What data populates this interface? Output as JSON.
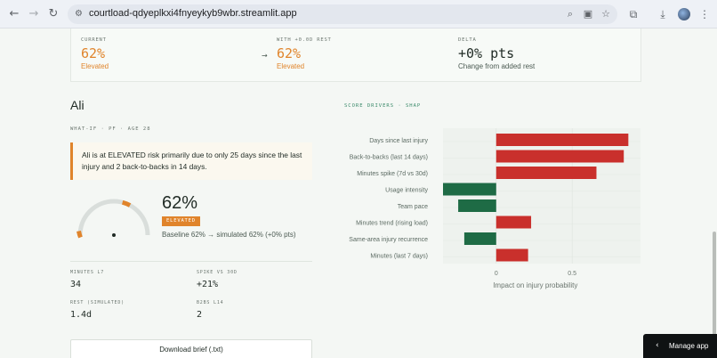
{
  "browser": {
    "url": "courtload-qdyeplkxi4fnyeykyb9wbr.streamlit.app",
    "icons": {
      "back": "back-arrow-icon",
      "forward": "forward-arrow-icon",
      "reload": "reload-icon",
      "site_info": "tune-icon",
      "zoom": "magnifier-icon",
      "cast": "install-app-icon",
      "bookmark": "star-icon",
      "extensions": "puzzle-icon",
      "downloads": "download-icon",
      "menu": "kebab-icon"
    }
  },
  "summary": {
    "current": {
      "label": "CURRENT",
      "value": "62%",
      "status": "Elevated"
    },
    "with_rest": {
      "label": "WITH +0.0D REST",
      "value": "62%",
      "status": "Elevated"
    },
    "delta": {
      "label": "DELTA",
      "value": "+0% pts",
      "caption": "Change from added rest"
    },
    "arrow": "→"
  },
  "player": {
    "name": "Ali",
    "subtitle": "WHAT-IF · PF · AGE 28",
    "alert": "Ali is at ELEVATED risk primarily due to only 25 days since the last injury and 2 back-to-backs in 14 days.",
    "risk_pct": "62%",
    "risk_fraction": 0.62,
    "badge": "ELEVATED",
    "baseline": "Baseline 62% → simulated 62% (+0% pts)"
  },
  "stats": [
    {
      "label": "MINUTES L7",
      "value": "34"
    },
    {
      "label": "SPIKE VS 30D",
      "value": "+21%"
    },
    {
      "label": "REST (SIMULATED)",
      "value": "1.4d"
    },
    {
      "label": "B2BS L14",
      "value": "2"
    }
  ],
  "download_label": "Download brief (.txt)",
  "manage_app": "Manage app",
  "colors": {
    "accent_orange": "#e0842b",
    "positive_red": "#c9302c",
    "negative_green": "#1e6b45",
    "title_green": "#3a8a6a"
  },
  "chart_data": {
    "type": "bar",
    "orientation": "horizontal",
    "title": "SCORE DRIVERS · SHAP",
    "xlabel": "Impact on injury probability",
    "ylabel": "",
    "xlim": [
      -0.35,
      0.95
    ],
    "xticks": [
      0,
      0.5
    ],
    "grid": true,
    "categories": [
      "Days since last injury",
      "Back-to-backs (last 14 days)",
      "Minutes spike (7d vs 30d)",
      "Usage intensity",
      "Team pace",
      "Minutes trend (rising load)",
      "Same-area injury recurrence",
      "Minutes (last 7 days)"
    ],
    "values": [
      0.87,
      0.84,
      0.66,
      -0.35,
      -0.25,
      0.23,
      -0.21,
      0.21
    ]
  }
}
